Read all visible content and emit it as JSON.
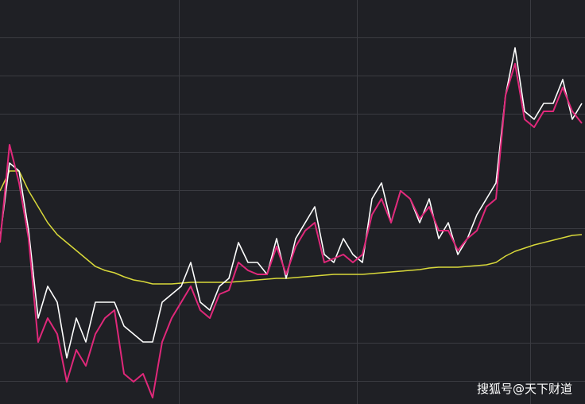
{
  "chart_data": {
    "type": "line",
    "ylim": [
      0,
      508
    ],
    "series": [
      {
        "color": "#d8d83a",
        "width": 1.5,
        "values": [
          268,
          293,
          293,
          268,
          248,
          228,
          213,
          203,
          193,
          183,
          173,
          168,
          165,
          160,
          156,
          154,
          151,
          151,
          151,
          152,
          153,
          153,
          153,
          153,
          153,
          154,
          155,
          156,
          157,
          158,
          158,
          159,
          160,
          161,
          162,
          163,
          163,
          163,
          163,
          164,
          165,
          166,
          167,
          168,
          169,
          171,
          172,
          172,
          172,
          173,
          174,
          175,
          178,
          186,
          192,
          196,
          200,
          203,
          206,
          209,
          212,
          213
        ]
      },
      {
        "color": "#ffffff",
        "width": 1.6,
        "values": [
          208,
          303,
          293,
          218,
          108,
          148,
          128,
          58,
          108,
          78,
          128,
          128,
          128,
          98,
          88,
          78,
          78,
          128,
          138,
          148,
          178,
          128,
          118,
          148,
          158,
          203,
          178,
          178,
          163,
          208,
          158,
          208,
          228,
          248,
          188,
          178,
          208,
          188,
          178,
          258,
          278,
          228,
          268,
          258,
          228,
          258,
          208,
          228,
          188,
          208,
          238,
          258,
          278,
          388,
          448,
          368,
          358,
          378,
          378,
          408,
          358,
          378
        ]
      },
      {
        "color": "#e0287a",
        "width": 2,
        "values": [
          203,
          326,
          278,
          208,
          78,
          108,
          88,
          28,
          68,
          48,
          88,
          108,
          118,
          38,
          28,
          38,
          8,
          78,
          108,
          128,
          148,
          118,
          108,
          138,
          143,
          178,
          168,
          163,
          163,
          198,
          163,
          198,
          218,
          228,
          178,
          183,
          188,
          178,
          188,
          238,
          258,
          228,
          268,
          258,
          233,
          248,
          218,
          218,
          193,
          208,
          218,
          248,
          258,
          388,
          428,
          358,
          348,
          368,
          368,
          398,
          368,
          353
        ]
      }
    ],
    "watermark": "搜狐号@天下财道"
  }
}
